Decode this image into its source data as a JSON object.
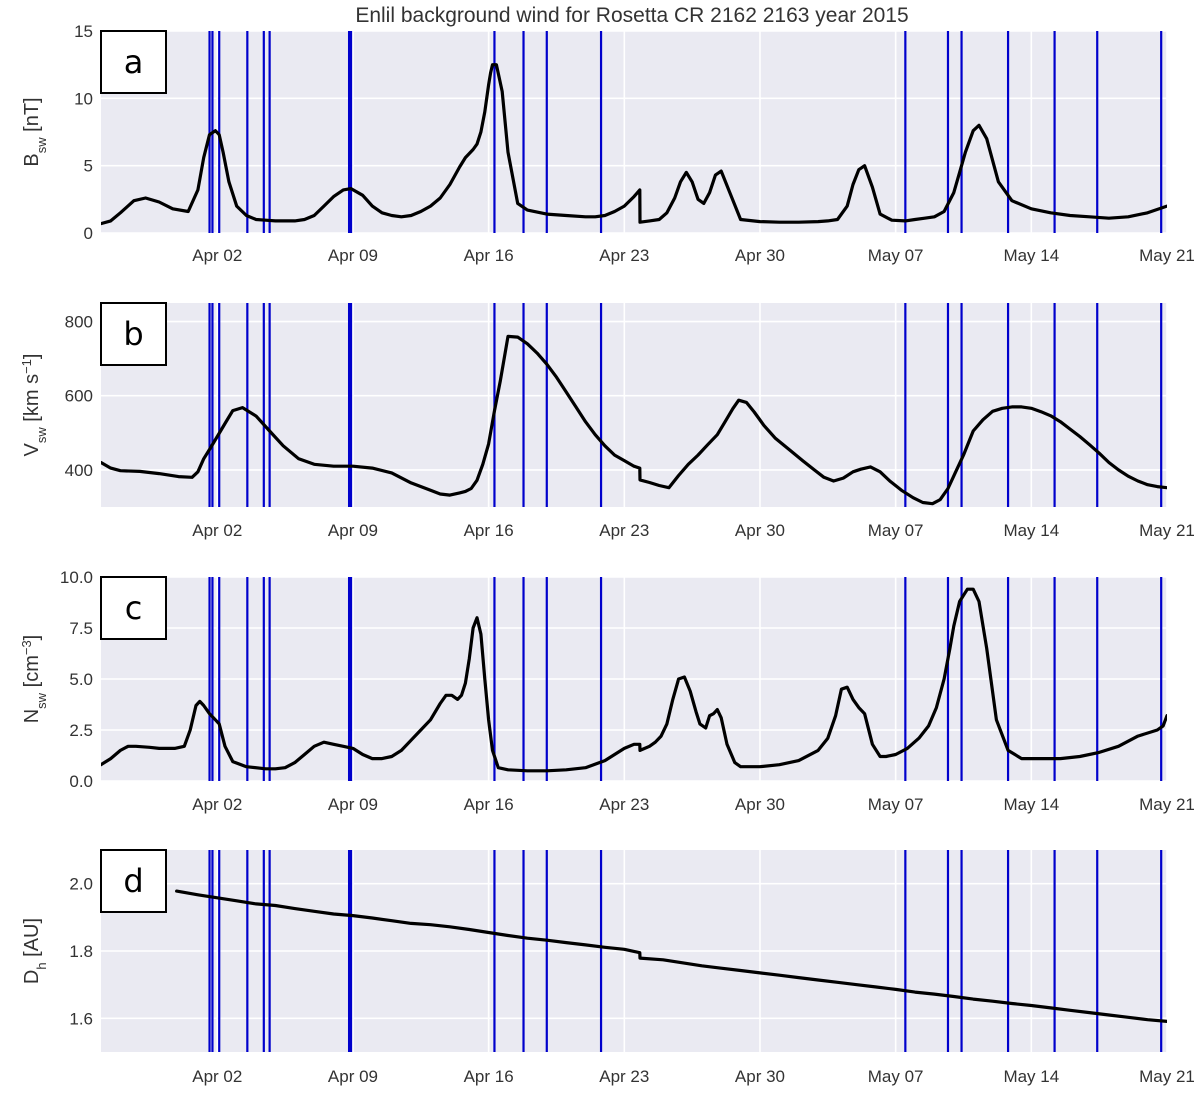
{
  "title": "Enlil background wind for Rosetta     CR 2162 2163     year 2015",
  "colors": {
    "panel_bg": "#eaeaf2",
    "grid": "#ffffff",
    "event_line": "#0000cc",
    "data_line": "#000000"
  },
  "x_axis": {
    "range_days": [
      26.0,
      81.0
    ],
    "ticks": [
      {
        "day": 32,
        "label": "Apr 02"
      },
      {
        "day": 39,
        "label": "Apr 09"
      },
      {
        "day": 46,
        "label": "Apr 16"
      },
      {
        "day": 53,
        "label": "Apr 23"
      },
      {
        "day": 60,
        "label": "Apr 30"
      },
      {
        "day": 67,
        "label": "May 07"
      },
      {
        "day": 74,
        "label": "May 14"
      },
      {
        "day": 81,
        "label": "May 21"
      }
    ]
  },
  "event_lines_days": [
    31.6,
    31.75,
    32.1,
    33.55,
    34.4,
    34.7,
    38.8,
    38.9,
    46.3,
    47.8,
    49.0,
    51.8,
    67.5,
    69.7,
    70.4,
    72.8,
    75.2,
    77.4,
    80.7
  ],
  "chart_data": [
    {
      "type": "line",
      "panel_letter": "a",
      "ylabel_main": "B",
      "ylabel_sub": "sw",
      "ylabel_unit": " [nT]",
      "ylabel_sup": "",
      "ylabel_end": "",
      "ylim": [
        0,
        15
      ],
      "yticks": [
        0,
        5,
        10,
        15
      ],
      "ytick_labels": [
        "0",
        "5",
        "10",
        "15"
      ],
      "x": [
        26.0,
        26.5,
        27.0,
        27.7,
        28.3,
        29.0,
        29.7,
        30.5,
        31.0,
        31.3,
        31.6,
        31.9,
        32.1,
        32.3,
        32.6,
        33.0,
        33.5,
        34.0,
        34.5,
        35.0,
        35.5,
        36.0,
        36.5,
        37.0,
        37.5,
        38.0,
        38.5,
        38.9,
        39.5,
        40.0,
        40.5,
        41.0,
        41.5,
        42.0,
        42.5,
        43.0,
        43.5,
        44.0,
        44.5,
        44.8,
        45.0,
        45.2,
        45.4,
        45.6,
        45.8,
        45.9,
        46.0,
        46.1,
        46.2,
        46.4,
        46.7,
        47.0,
        47.5,
        48.0,
        49.0,
        50.0,
        51.0,
        51.5,
        52.0,
        52.5,
        53.0,
        53.5,
        53.8,
        53.81,
        54.3,
        54.8,
        55.2,
        55.6,
        55.9,
        56.2,
        56.5,
        56.8,
        57.1,
        57.4,
        57.7,
        58.0,
        58.5,
        59.0,
        60.0,
        61.0,
        62.0,
        63.0,
        63.5,
        64.0,
        64.5,
        64.8,
        65.1,
        65.4,
        65.8,
        66.2,
        66.8,
        67.5,
        68.0,
        68.5,
        69.0,
        69.5,
        70.0,
        70.3,
        70.6,
        71.0,
        71.3,
        71.7,
        72.3,
        73.0,
        74.0,
        75.0,
        76.0,
        77.0,
        78.0,
        79.0,
        80.0,
        81.0
      ],
      "y": [
        0.7,
        0.9,
        1.5,
        2.4,
        2.6,
        2.3,
        1.8,
        1.6,
        3.2,
        5.6,
        7.3,
        7.6,
        7.3,
        6.0,
        3.8,
        2.0,
        1.3,
        1.0,
        0.95,
        0.9,
        0.9,
        0.9,
        1.0,
        1.3,
        2.0,
        2.7,
        3.2,
        3.3,
        2.8,
        2.0,
        1.5,
        1.3,
        1.2,
        1.3,
        1.6,
        2.0,
        2.6,
        3.6,
        4.9,
        5.6,
        5.9,
        6.2,
        6.6,
        7.5,
        9.0,
        10.0,
        11.0,
        11.9,
        12.5,
        12.5,
        10.5,
        6.0,
        2.2,
        1.7,
        1.4,
        1.3,
        1.2,
        1.2,
        1.3,
        1.6,
        2.0,
        2.7,
        3.2,
        0.8,
        0.9,
        1.0,
        1.5,
        2.6,
        3.8,
        4.5,
        3.8,
        2.5,
        2.2,
        3.0,
        4.3,
        4.6,
        2.8,
        1.0,
        0.85,
        0.8,
        0.8,
        0.85,
        0.9,
        1.0,
        2.0,
        3.6,
        4.7,
        5.0,
        3.4,
        1.4,
        0.95,
        0.9,
        1.0,
        1.1,
        1.2,
        1.6,
        3.0,
        4.5,
        6.0,
        7.6,
        8.0,
        7.0,
        3.8,
        2.4,
        1.8,
        1.5,
        1.3,
        1.2,
        1.1,
        1.2,
        1.5,
        2.0
      ]
    },
    {
      "type": "line",
      "panel_letter": "b",
      "ylabel_main": "V",
      "ylabel_sub": "sw",
      "ylabel_unit": " [km s",
      "ylabel_sup": "−1",
      "ylabel_end": "]",
      "ylim": [
        300,
        850
      ],
      "yticks": [
        400,
        600,
        800
      ],
      "ytick_labels": [
        "400",
        "600",
        "800"
      ],
      "x": [
        26.0,
        26.5,
        27.0,
        28.0,
        29.0,
        30.0,
        30.7,
        31.0,
        31.3,
        31.6,
        32.0,
        32.4,
        32.8,
        33.3,
        34.0,
        34.7,
        35.4,
        36.2,
        37.0,
        38.0,
        39.0,
        40.0,
        41.0,
        42.0,
        43.0,
        43.5,
        44.0,
        44.5,
        44.8,
        45.1,
        45.4,
        45.7,
        46.0,
        46.3,
        46.6,
        47.0,
        47.5,
        48.0,
        48.5,
        49.0,
        49.5,
        50.0,
        50.5,
        51.0,
        51.5,
        52.0,
        52.5,
        53.0,
        53.5,
        53.8,
        53.81,
        54.3,
        54.8,
        55.3,
        55.8,
        56.3,
        56.8,
        57.3,
        57.8,
        58.2,
        58.6,
        58.9,
        59.3,
        59.7,
        60.2,
        60.8,
        61.5,
        62.2,
        62.8,
        63.3,
        63.8,
        64.3,
        64.8,
        65.2,
        65.7,
        66.2,
        66.7,
        67.3,
        67.9,
        68.4,
        68.9,
        69.3,
        69.7,
        70.1,
        70.5,
        71.0,
        71.5,
        72.0,
        72.5,
        73.0,
        73.5,
        74.0,
        74.5,
        75.0,
        75.5,
        76.0,
        76.5,
        77.0,
        77.5,
        78.0,
        78.5,
        79.0,
        79.5,
        80.0,
        80.5,
        81.0
      ],
      "y": [
        420,
        405,
        398,
        396,
        390,
        382,
        380,
        395,
        430,
        455,
        490,
        525,
        560,
        568,
        545,
        505,
        465,
        430,
        415,
        410,
        410,
        405,
        392,
        365,
        345,
        335,
        332,
        338,
        342,
        350,
        372,
        415,
        470,
        560,
        640,
        760,
        758,
        740,
        715,
        685,
        650,
        610,
        570,
        530,
        495,
        465,
        440,
        425,
        410,
        405,
        373,
        366,
        358,
        352,
        385,
        415,
        440,
        468,
        495,
        530,
        565,
        588,
        582,
        556,
        520,
        485,
        455,
        425,
        400,
        380,
        370,
        378,
        395,
        402,
        408,
        395,
        370,
        345,
        325,
        312,
        309,
        320,
        350,
        395,
        440,
        505,
        535,
        558,
        566,
        570,
        570,
        566,
        557,
        546,
        530,
        510,
        490,
        468,
        445,
        420,
        400,
        383,
        370,
        360,
        355,
        352
      ]
    },
    {
      "type": "line",
      "panel_letter": "c",
      "ylabel_main": "N",
      "ylabel_sub": "sw",
      "ylabel_unit": " [cm",
      "ylabel_sup": "−3",
      "ylabel_end": "]",
      "ylim": [
        0,
        10
      ],
      "yticks": [
        0.0,
        2.5,
        5.0,
        7.5,
        10.0
      ],
      "ytick_labels": [
        "0.0",
        "2.5",
        "5.0",
        "7.5",
        "10.0"
      ],
      "x": [
        26.0,
        26.5,
        27.0,
        27.4,
        27.8,
        28.5,
        29.0,
        29.8,
        30.3,
        30.6,
        30.9,
        31.1,
        31.3,
        31.6,
        31.9,
        32.1,
        32.4,
        32.8,
        33.5,
        34.5,
        35.0,
        35.5,
        36.0,
        36.5,
        37.0,
        37.5,
        38.0,
        38.5,
        39.0,
        39.5,
        40.0,
        40.5,
        41.0,
        41.5,
        42.0,
        42.5,
        43.0,
        43.5,
        43.8,
        44.1,
        44.4,
        44.6,
        44.8,
        45.0,
        45.2,
        45.4,
        45.6,
        45.8,
        46.0,
        46.2,
        46.5,
        47.0,
        48.0,
        49.0,
        50.0,
        51.0,
        52.0,
        52.5,
        53.0,
        53.5,
        53.8,
        53.81,
        54.3,
        54.6,
        54.9,
        55.2,
        55.5,
        55.8,
        56.1,
        56.4,
        56.7,
        56.9,
        57.2,
        57.4,
        57.6,
        57.8,
        58.0,
        58.3,
        58.7,
        59.0,
        60.0,
        61.0,
        62.0,
        63.0,
        63.5,
        63.9,
        64.2,
        64.5,
        64.8,
        65.1,
        65.4,
        65.8,
        66.2,
        66.5,
        67.0,
        67.6,
        68.2,
        68.7,
        69.1,
        69.5,
        69.8,
        70.0,
        70.3,
        70.7,
        71.0,
        71.3,
        71.7,
        72.2,
        72.8,
        73.5,
        74.5,
        75.5,
        76.5,
        77.5,
        78.5,
        79.5,
        80.5,
        80.8,
        81.0
      ],
      "y": [
        0.8,
        1.1,
        1.5,
        1.7,
        1.7,
        1.65,
        1.6,
        1.6,
        1.7,
        2.5,
        3.7,
        3.9,
        3.7,
        3.3,
        3.0,
        2.8,
        1.7,
        0.95,
        0.7,
        0.6,
        0.6,
        0.65,
        0.9,
        1.3,
        1.7,
        1.9,
        1.8,
        1.7,
        1.6,
        1.3,
        1.1,
        1.1,
        1.2,
        1.5,
        2.0,
        2.5,
        3.0,
        3.8,
        4.2,
        4.2,
        4.0,
        4.2,
        4.8,
        6.0,
        7.5,
        8.0,
        7.2,
        5.0,
        3.0,
        1.5,
        0.65,
        0.55,
        0.5,
        0.5,
        0.55,
        0.65,
        1.0,
        1.3,
        1.6,
        1.8,
        1.8,
        1.5,
        1.7,
        1.9,
        2.2,
        2.8,
        4.0,
        5.0,
        5.1,
        4.4,
        3.4,
        2.8,
        2.6,
        3.2,
        3.3,
        3.5,
        3.1,
        1.8,
        0.9,
        0.7,
        0.7,
        0.8,
        1.0,
        1.5,
        2.1,
        3.2,
        4.5,
        4.6,
        4.0,
        3.6,
        3.3,
        1.8,
        1.2,
        1.2,
        1.3,
        1.6,
        2.1,
        2.7,
        3.6,
        5.0,
        6.5,
        7.6,
        8.8,
        9.4,
        9.4,
        8.8,
        6.5,
        3.0,
        1.5,
        1.1,
        1.1,
        1.1,
        1.2,
        1.4,
        1.7,
        2.2,
        2.5,
        2.7,
        3.2
      ]
    },
    {
      "type": "line",
      "panel_letter": "d",
      "ylabel_main": "D",
      "ylabel_sub": "h",
      "ylabel_unit": " [AU]",
      "ylabel_sup": "",
      "ylabel_end": "",
      "ylim": [
        1.5,
        2.1
      ],
      "yticks": [
        1.6,
        1.8,
        2.0
      ],
      "ytick_labels": [
        "1.6",
        "1.8",
        "2.0"
      ],
      "x": [
        29.9,
        31.0,
        32.0,
        33.0,
        34.0,
        35.0,
        36.0,
        37.0,
        38.0,
        39.0,
        40.0,
        41.0,
        42.0,
        43.0,
        44.0,
        45.0,
        46.0,
        47.0,
        48.0,
        49.0,
        50.0,
        51.0,
        52.0,
        53.0,
        53.8,
        53.81,
        55.0,
        56.0,
        57.0,
        58.0,
        59.0,
        60.0,
        61.0,
        62.0,
        63.0,
        64.0,
        65.0,
        66.0,
        67.0,
        68.0,
        69.0,
        70.0,
        71.0,
        72.0,
        73.0,
        74.0,
        75.0,
        76.0,
        77.0,
        78.0,
        79.0,
        80.0,
        81.0
      ],
      "y": [
        1.978,
        1.967,
        1.958,
        1.949,
        1.94,
        1.935,
        1.926,
        1.918,
        1.91,
        1.905,
        1.898,
        1.89,
        1.882,
        1.878,
        1.872,
        1.864,
        1.855,
        1.846,
        1.838,
        1.832,
        1.825,
        1.818,
        1.811,
        1.805,
        1.795,
        1.779,
        1.774,
        1.765,
        1.756,
        1.749,
        1.742,
        1.735,
        1.728,
        1.721,
        1.714,
        1.707,
        1.7,
        1.693,
        1.686,
        1.678,
        1.672,
        1.665,
        1.657,
        1.651,
        1.644,
        1.638,
        1.631,
        1.624,
        1.617,
        1.61,
        1.603,
        1.596,
        1.591
      ]
    }
  ]
}
